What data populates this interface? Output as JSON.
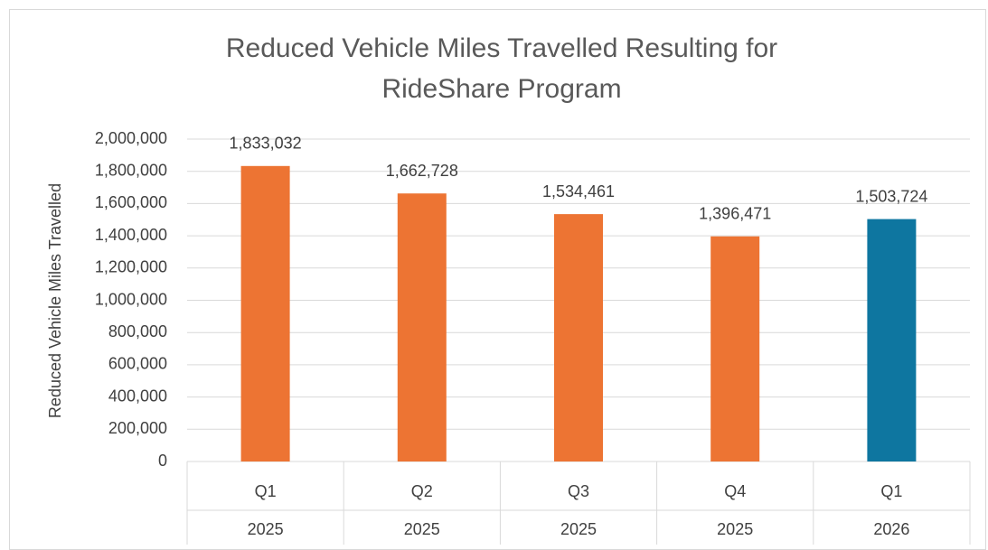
{
  "chart_data": {
    "type": "bar",
    "title": [
      "Reduced Vehicle Miles Travelled Resulting for",
      "RideShare Program"
    ],
    "y_label": "Reduced Vehicle Miles Travelled",
    "categories": [
      "Q1",
      "Q2",
      "Q3",
      "Q4",
      "Q1"
    ],
    "years": [
      "2025",
      "2025",
      "2025",
      "2025",
      "2026"
    ],
    "values": [
      1833032,
      1662728,
      1534461,
      1396471,
      1503724
    ],
    "value_labels": [
      "1,833,032",
      "1,662,728",
      "1,534,461",
      "1,396,471",
      "1,503,724"
    ],
    "colors": [
      "#ed7433",
      "#ed7433",
      "#ed7433",
      "#ed7433",
      "#0e76a0"
    ],
    "ylim": [
      0,
      2000000
    ],
    "yticks": [
      0,
      {
        "value": 200000,
        "label": "200,000"
      },
      {
        "value": 400000,
        "label": "400,000"
      },
      {
        "value": 600000,
        "label": "600,000"
      },
      {
        "value": 800000,
        "label": "800,000"
      },
      {
        "value": 1000000,
        "label": "1,000,000"
      },
      {
        "value": 1200000,
        "label": "1,200,000"
      },
      {
        "value": 1400000,
        "label": "1,400,000"
      },
      {
        "value": 1600000,
        "label": "1,600,000"
      },
      {
        "value": 1800000,
        "label": "1,800,000"
      },
      {
        "value": 2000000,
        "label": "2,000,000"
      }
    ],
    "grid": true
  }
}
